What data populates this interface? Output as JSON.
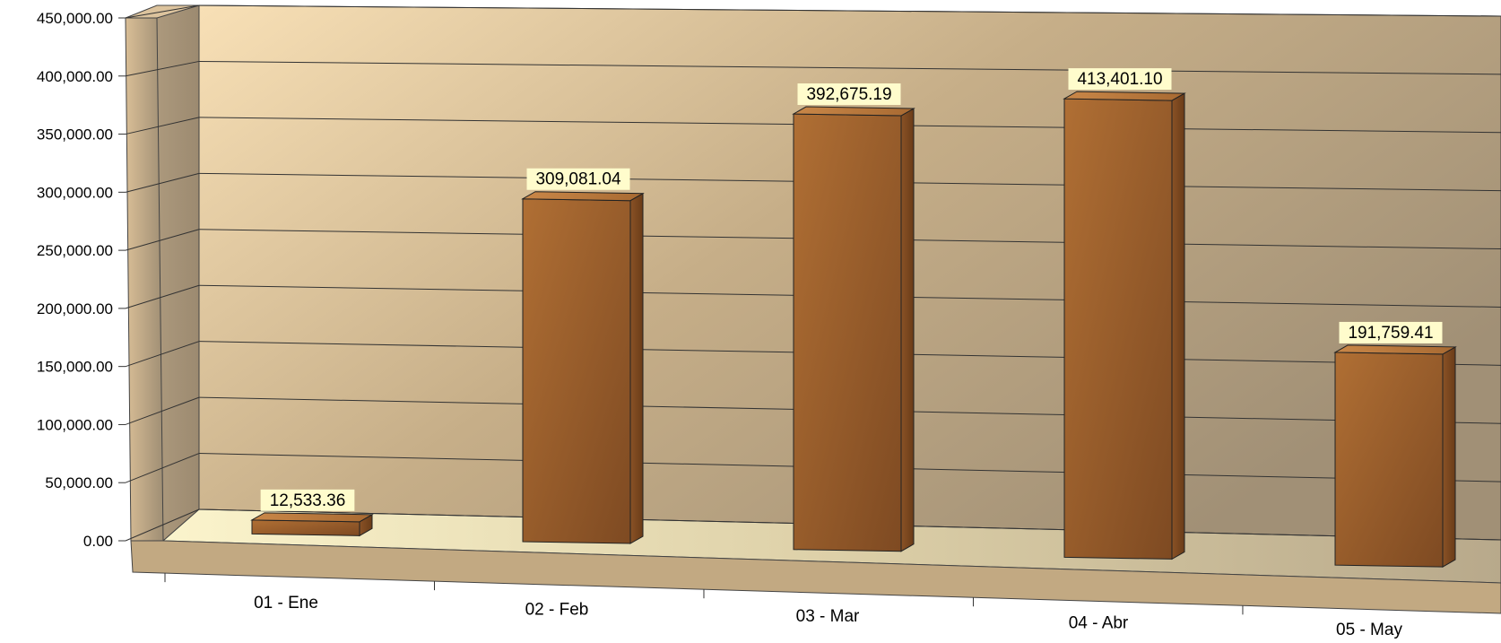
{
  "chart_data": {
    "type": "bar",
    "title": "",
    "xlabel": "",
    "ylabel": "",
    "categories": [
      "01 - Ene",
      "02 - Feb",
      "03 - Mar",
      "04 - Abr",
      "05 - May"
    ],
    "values": [
      12533.36,
      309081.04,
      392675.19,
      413401.1,
      191759.41
    ],
    "value_labels": [
      "12,533.36",
      "309,081.04",
      "392,675.19",
      "413,401.10",
      "191,759.41"
    ],
    "ylim": [
      0,
      450000
    ],
    "yticks": [
      0,
      50000,
      100000,
      150000,
      200000,
      250000,
      300000,
      350000,
      400000,
      450000
    ],
    "ytick_labels": [
      "0.00",
      "50,000.00",
      "100,000.00",
      "150,000.00",
      "200,000.00",
      "250,000.00",
      "300,000.00",
      "350,000.00",
      "400,000.00",
      "450,000.00"
    ],
    "grid": true,
    "legend": "none",
    "style": "3d-perspective",
    "colors": {
      "bar": "#9a5a26",
      "wall_light": "#f7dfb4",
      "wall_dark": "#a89478",
      "floor": "#f4edc4",
      "label_bg": "#fffccc"
    }
  }
}
